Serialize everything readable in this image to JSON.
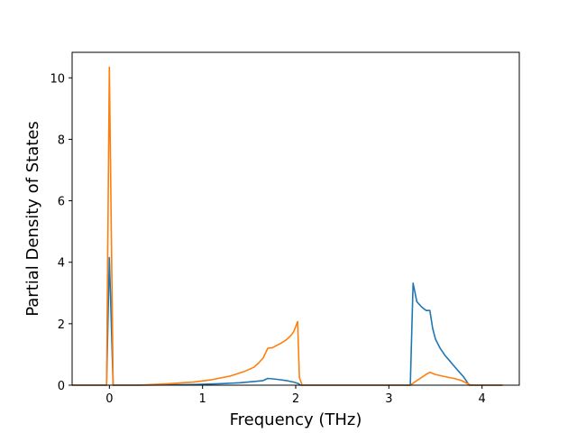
{
  "chart_data": {
    "type": "line",
    "title": "",
    "xlabel": "Frequency (THz)",
    "ylabel": "Partial Density of States",
    "xlim": [
      -0.4,
      4.4
    ],
    "ylim": [
      0,
      10.83
    ],
    "xticks": [
      0,
      1,
      2,
      3,
      4
    ],
    "yticks": [
      0,
      2,
      4,
      6,
      8,
      10
    ],
    "grid": false,
    "legend": "none",
    "series": [
      {
        "color": "#1f77b4",
        "points": [
          [
            -0.4,
            0
          ],
          [
            -0.03,
            0
          ],
          [
            0.0,
            4.15
          ],
          [
            0.04,
            0
          ],
          [
            0.3,
            0
          ],
          [
            0.6,
            0.01
          ],
          [
            0.9,
            0.02
          ],
          [
            1.2,
            0.05
          ],
          [
            1.4,
            0.08
          ],
          [
            1.55,
            0.12
          ],
          [
            1.65,
            0.15
          ],
          [
            1.7,
            0.22
          ],
          [
            1.8,
            0.19
          ],
          [
            1.9,
            0.15
          ],
          [
            1.98,
            0.1
          ],
          [
            2.03,
            0.05
          ],
          [
            2.05,
            0
          ],
          [
            2.5,
            0
          ],
          [
            3.0,
            0
          ],
          [
            3.23,
            0
          ],
          [
            3.26,
            3.32
          ],
          [
            3.3,
            2.72
          ],
          [
            3.35,
            2.55
          ],
          [
            3.4,
            2.43
          ],
          [
            3.44,
            2.43
          ],
          [
            3.47,
            1.85
          ],
          [
            3.5,
            1.5
          ],
          [
            3.55,
            1.2
          ],
          [
            3.6,
            0.98
          ],
          [
            3.65,
            0.8
          ],
          [
            3.7,
            0.62
          ],
          [
            3.75,
            0.45
          ],
          [
            3.8,
            0.28
          ],
          [
            3.83,
            0.15
          ],
          [
            3.86,
            0
          ],
          [
            4.22,
            0
          ]
        ]
      },
      {
        "color": "#ff7f0e",
        "points": [
          [
            -0.4,
            0
          ],
          [
            -0.03,
            0
          ],
          [
            0.0,
            10.35
          ],
          [
            0.04,
            0
          ],
          [
            0.3,
            0
          ],
          [
            0.6,
            0.04
          ],
          [
            0.9,
            0.1
          ],
          [
            1.1,
            0.18
          ],
          [
            1.3,
            0.3
          ],
          [
            1.45,
            0.45
          ],
          [
            1.55,
            0.58
          ],
          [
            1.6,
            0.72
          ],
          [
            1.65,
            0.88
          ],
          [
            1.7,
            1.2
          ],
          [
            1.75,
            1.22
          ],
          [
            1.8,
            1.3
          ],
          [
            1.85,
            1.38
          ],
          [
            1.9,
            1.48
          ],
          [
            1.95,
            1.62
          ],
          [
            1.98,
            1.75
          ],
          [
            2.02,
            2.07
          ],
          [
            2.04,
            0.25
          ],
          [
            2.07,
            0
          ],
          [
            2.5,
            0
          ],
          [
            3.0,
            0
          ],
          [
            3.23,
            0
          ],
          [
            3.3,
            0.15
          ],
          [
            3.35,
            0.25
          ],
          [
            3.4,
            0.35
          ],
          [
            3.44,
            0.42
          ],
          [
            3.5,
            0.35
          ],
          [
            3.6,
            0.28
          ],
          [
            3.7,
            0.22
          ],
          [
            3.78,
            0.15
          ],
          [
            3.84,
            0.06
          ],
          [
            3.88,
            0
          ],
          [
            4.22,
            0
          ]
        ]
      }
    ]
  }
}
